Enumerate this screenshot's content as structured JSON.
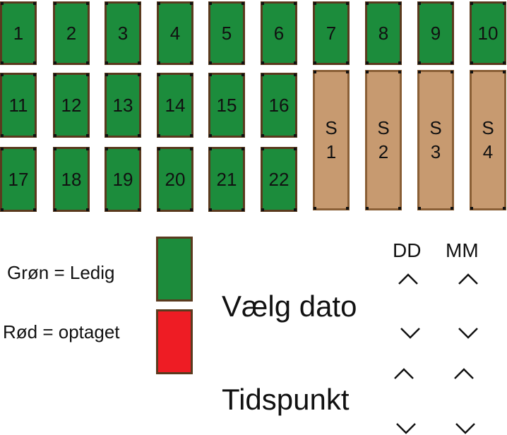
{
  "slots_row1": [
    "1",
    "2",
    "3",
    "4",
    "5",
    "6",
    "7",
    "8",
    "9",
    "10"
  ],
  "slots_row2": [
    "11",
    "12",
    "13",
    "14",
    "15",
    "16"
  ],
  "slots_row3": [
    "17",
    "18",
    "19",
    "20",
    "21",
    "22"
  ],
  "special_slots": [
    "S\n1",
    "S\n2",
    "S\n3",
    "S\n4"
  ],
  "legend": {
    "green_label": "Grøn = Ledig",
    "red_label": "Rød = optaget",
    "green_color": "#1c8c3c",
    "red_color": "#ee1c24"
  },
  "date_picker": {
    "label": "Vælg dato",
    "day_header": "DD",
    "month_header": "MM"
  },
  "time_picker": {
    "label": "Tidspunkt"
  },
  "icons": {
    "up": "chevron-up-icon",
    "down": "chevron-down-icon"
  }
}
